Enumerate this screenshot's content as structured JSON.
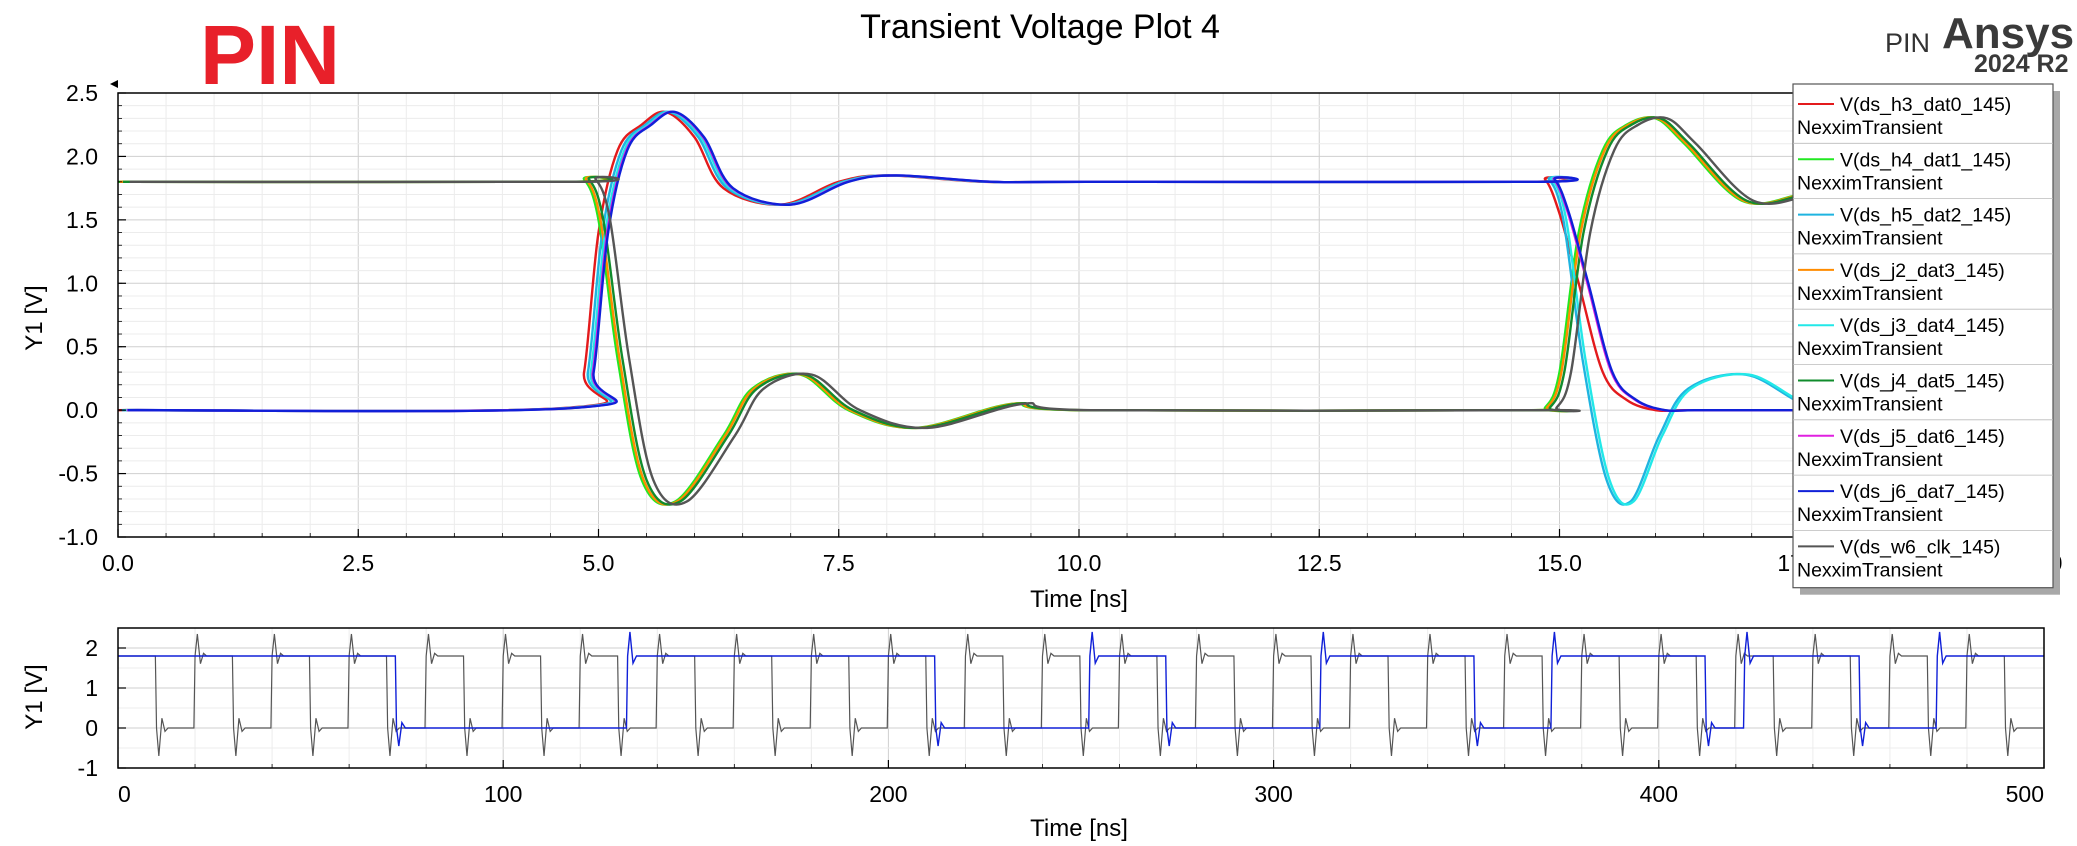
{
  "logo_text": "PIN",
  "brand": {
    "prefix": "PIN",
    "name": "Ansys",
    "version": "2024 R2"
  },
  "chart_data": [
    {
      "type": "line",
      "title": "Transient Voltage Plot 4",
      "xlabel": "Time [ns]",
      "ylabel": "Y1 [V]",
      "xlim": [
        0,
        20
      ],
      "ylim": [
        -1.0,
        2.5
      ],
      "x_ticks": [
        "0.0",
        "2.5",
        "5.0",
        "7.5",
        "10.0",
        "12.5",
        "15.0",
        "17.5",
        "20.0"
      ],
      "y_ticks": [
        "2.5",
        "2.0",
        "1.5",
        "1.0",
        "0.5",
        "0.0",
        "-0.5",
        "-1.0"
      ],
      "grid": true,
      "legend_position": "top-right",
      "series": [
        {
          "name": "V(ds_h3_dat0_145)",
          "subname": "NexximTransient",
          "color": "#e31a1c",
          "state": "rise",
          "offset": 0.0,
          "x": [
            0,
            4.7,
            4.85,
            5.0,
            5.2,
            5.45,
            5.7,
            6.0,
            6.3,
            6.9,
            7.5,
            8.0,
            9.0,
            10.0,
            14.7,
            14.85,
            15.0,
            15.2,
            15.45,
            15.7,
            16.0,
            16.3,
            16.9,
            17.5,
            18.0,
            19.0,
            20.0
          ],
          "y": [
            0.0,
            0.02,
            0.3,
            1.4,
            2.05,
            2.25,
            2.35,
            2.15,
            1.75,
            1.62,
            1.8,
            1.85,
            1.8,
            1.8,
            1.8,
            1.82,
            1.55,
            1.0,
            0.3,
            0.08,
            0.0,
            0.0,
            0.0,
            0.0,
            0.0,
            0.0,
            0.0
          ]
        },
        {
          "name": "V(ds_h4_dat1_145)",
          "subname": "NexximTransient",
          "color": "#22e822",
          "state": "high",
          "offset": 0.0,
          "x": [
            0,
            4.7,
            4.85,
            5.0,
            5.2,
            5.45,
            5.8,
            6.3,
            6.6,
            7.1,
            7.6,
            8.3,
            9.3,
            10.0,
            14.7,
            14.85,
            15.0,
            15.2,
            15.45,
            15.7,
            16.0,
            16.3,
            16.9,
            17.5,
            18.0,
            19.0,
            20.0
          ],
          "y": [
            1.8,
            1.8,
            1.82,
            1.5,
            0.4,
            -0.55,
            -0.72,
            -0.2,
            0.17,
            0.28,
            0.0,
            -0.14,
            0.05,
            0.0,
            0.0,
            0.02,
            0.3,
            1.4,
            2.05,
            2.25,
            2.3,
            2.1,
            1.65,
            1.7,
            1.8,
            1.8,
            1.8
          ]
        },
        {
          "name": "V(ds_h5_dat2_145)",
          "subname": "NexximTransient",
          "color": "#1fb4e0",
          "state": "rise",
          "offset": 0.04,
          "x": [
            0,
            4.7,
            4.85,
            5.0,
            5.2,
            5.45,
            5.7,
            6.0,
            6.3,
            6.9,
            7.5,
            8.0,
            9.0,
            10.0,
            14.7,
            14.85,
            15.0,
            15.2,
            15.45,
            15.7,
            16.0,
            16.3,
            16.9,
            17.5,
            18.0,
            19.0,
            20.0
          ],
          "y": [
            0.0,
            0.02,
            0.3,
            1.4,
            2.05,
            2.25,
            2.35,
            2.15,
            1.75,
            1.62,
            1.8,
            1.85,
            1.8,
            1.8,
            1.8,
            1.82,
            1.5,
            0.4,
            -0.55,
            -0.72,
            -0.2,
            0.17,
            0.28,
            0.05,
            0.0,
            0.0,
            0.0
          ]
        },
        {
          "name": "V(ds_j2_dat3_145)",
          "subname": "NexximTransient",
          "color": "#ff8c00",
          "state": "high",
          "offset": 0.02,
          "x": [
            0,
            4.7,
            4.85,
            5.0,
            5.2,
            5.45,
            5.8,
            6.3,
            6.6,
            7.1,
            7.6,
            8.3,
            9.3,
            10.0,
            14.7,
            14.85,
            15.0,
            15.2,
            15.45,
            15.7,
            16.0,
            16.3,
            16.9,
            17.5,
            18.0,
            19.0,
            20.0
          ],
          "y": [
            1.8,
            1.8,
            1.82,
            1.5,
            0.4,
            -0.55,
            -0.72,
            -0.2,
            0.17,
            0.28,
            0.0,
            -0.14,
            0.05,
            0.0,
            0.0,
            0.02,
            0.3,
            1.4,
            2.05,
            2.25,
            2.3,
            2.1,
            1.65,
            1.7,
            1.8,
            1.8,
            1.8
          ]
        },
        {
          "name": "V(ds_j3_dat4_145)",
          "subname": "NexximTransient",
          "color": "#22e8e8",
          "state": "rise",
          "offset": 0.07,
          "x": [
            0,
            4.7,
            4.85,
            5.0,
            5.2,
            5.45,
            5.7,
            6.0,
            6.3,
            6.9,
            7.5,
            8.0,
            9.0,
            10.0,
            14.7,
            14.85,
            15.0,
            15.2,
            15.45,
            15.7,
            16.0,
            16.3,
            16.9,
            17.5,
            18.0,
            19.0,
            20.0
          ],
          "y": [
            0.0,
            0.02,
            0.3,
            1.4,
            2.05,
            2.25,
            2.35,
            2.15,
            1.75,
            1.62,
            1.8,
            1.85,
            1.8,
            1.8,
            1.8,
            1.82,
            1.5,
            0.4,
            -0.55,
            -0.72,
            -0.2,
            0.17,
            0.28,
            0.05,
            0.0,
            0.0,
            0.0
          ]
        },
        {
          "name": "V(ds_j4_dat5_145)",
          "subname": "NexximTransient",
          "color": "#118c2c",
          "state": "high",
          "offset": 0.05,
          "x": [
            0,
            4.7,
            4.85,
            5.0,
            5.2,
            5.45,
            5.8,
            6.3,
            6.6,
            7.1,
            7.6,
            8.3,
            9.3,
            10.0,
            14.7,
            14.85,
            15.0,
            15.2,
            15.45,
            15.7,
            16.0,
            16.3,
            16.9,
            17.5,
            18.0,
            19.0,
            20.0
          ],
          "y": [
            1.8,
            1.8,
            1.82,
            1.5,
            0.4,
            -0.55,
            -0.72,
            -0.2,
            0.17,
            0.28,
            0.0,
            -0.14,
            0.05,
            0.0,
            0.0,
            0.02,
            0.3,
            1.4,
            2.05,
            2.25,
            2.3,
            2.1,
            1.65,
            1.7,
            1.8,
            1.8,
            1.8
          ]
        },
        {
          "name": "V(ds_j5_dat6_145)",
          "subname": "NexximTransient",
          "color": "#e020e0",
          "state": "rise",
          "offset": 0.09,
          "x": [
            0,
            4.7,
            4.85,
            5.0,
            5.2,
            5.45,
            5.7,
            6.0,
            6.3,
            6.9,
            7.5,
            8.0,
            9.0,
            10.0,
            14.7,
            14.85,
            15.0,
            15.2,
            15.45,
            15.7,
            16.0,
            16.3,
            16.9,
            17.5,
            18.0,
            19.0,
            20.0
          ],
          "y": [
            0.0,
            0.02,
            0.3,
            1.4,
            2.05,
            2.25,
            2.35,
            2.15,
            1.75,
            1.62,
            1.8,
            1.85,
            1.8,
            1.8,
            1.8,
            1.82,
            1.55,
            1.0,
            0.3,
            0.08,
            0.0,
            0.0,
            0.0,
            0.0,
            0.0,
            0.0,
            0.0
          ]
        },
        {
          "name": "V(ds_j6_dat7_145)",
          "subname": "NexximTransient",
          "color": "#1020d8",
          "state": "rise",
          "offset": 0.1,
          "x": [
            0,
            4.7,
            4.85,
            5.0,
            5.2,
            5.45,
            5.7,
            6.0,
            6.3,
            6.9,
            7.5,
            8.0,
            9.0,
            10.0,
            14.7,
            14.85,
            15.0,
            15.2,
            15.45,
            15.7,
            16.0,
            16.3,
            16.9,
            17.5,
            18.0,
            19.0,
            20.0
          ],
          "y": [
            0.0,
            0.02,
            0.3,
            1.4,
            2.05,
            2.25,
            2.35,
            2.15,
            1.75,
            1.62,
            1.8,
            1.85,
            1.8,
            1.8,
            1.8,
            1.82,
            1.55,
            1.0,
            0.3,
            0.08,
            0.0,
            0.0,
            0.0,
            0.0,
            0.0,
            0.0,
            0.0
          ]
        },
        {
          "name": "V(ds_w6_clk_145)",
          "subname": "NexximTransient",
          "color": "#555555",
          "state": "high",
          "offset": 0.12,
          "x": [
            0,
            4.7,
            4.85,
            5.0,
            5.2,
            5.45,
            5.8,
            6.3,
            6.6,
            7.1,
            7.6,
            8.3,
            9.3,
            10.0,
            14.7,
            14.85,
            15.0,
            15.2,
            15.45,
            15.7,
            16.0,
            16.3,
            16.9,
            17.5,
            18.0,
            19.0,
            20.0
          ],
          "y": [
            1.8,
            1.8,
            1.82,
            1.5,
            0.4,
            -0.55,
            -0.72,
            -0.2,
            0.17,
            0.28,
            0.0,
            -0.14,
            0.05,
            0.0,
            0.0,
            0.02,
            0.3,
            1.4,
            2.05,
            2.25,
            2.3,
            2.1,
            1.65,
            1.7,
            1.8,
            1.8,
            1.8
          ]
        }
      ]
    },
    {
      "type": "line",
      "title": "",
      "xlabel": "Time [ns]",
      "ylabel": "Y1 [V]",
      "xlim": [
        0,
        500
      ],
      "ylim": [
        -1,
        2.5
      ],
      "x_ticks": [
        "0",
        "100",
        "200",
        "300",
        "400",
        "500"
      ],
      "y_ticks": [
        "2",
        "1",
        "0",
        "-1"
      ],
      "grid": true,
      "clock": {
        "name": "V(ds_w6_clk_145)",
        "color": "#555555",
        "period_ns": 20,
        "first_rise_ns": 10,
        "high": 1.8,
        "low": 0.0,
        "overshoot": 2.35,
        "undershoot": -0.7
      },
      "data": {
        "name": "V(ds_j6_dat7_145)",
        "color": "#1020d8",
        "transitions_ns": [
          0,
          72,
          132,
          192,
          212,
          252,
          272,
          312,
          352,
          372,
          412,
          422,
          452,
          472,
          500
        ],
        "levels": [
          1.8,
          0.0,
          1.8,
          1.8,
          0.0,
          1.8,
          0.0,
          1.8,
          0.0,
          1.8,
          0.0,
          1.8,
          0.0,
          1.8
        ]
      }
    }
  ]
}
